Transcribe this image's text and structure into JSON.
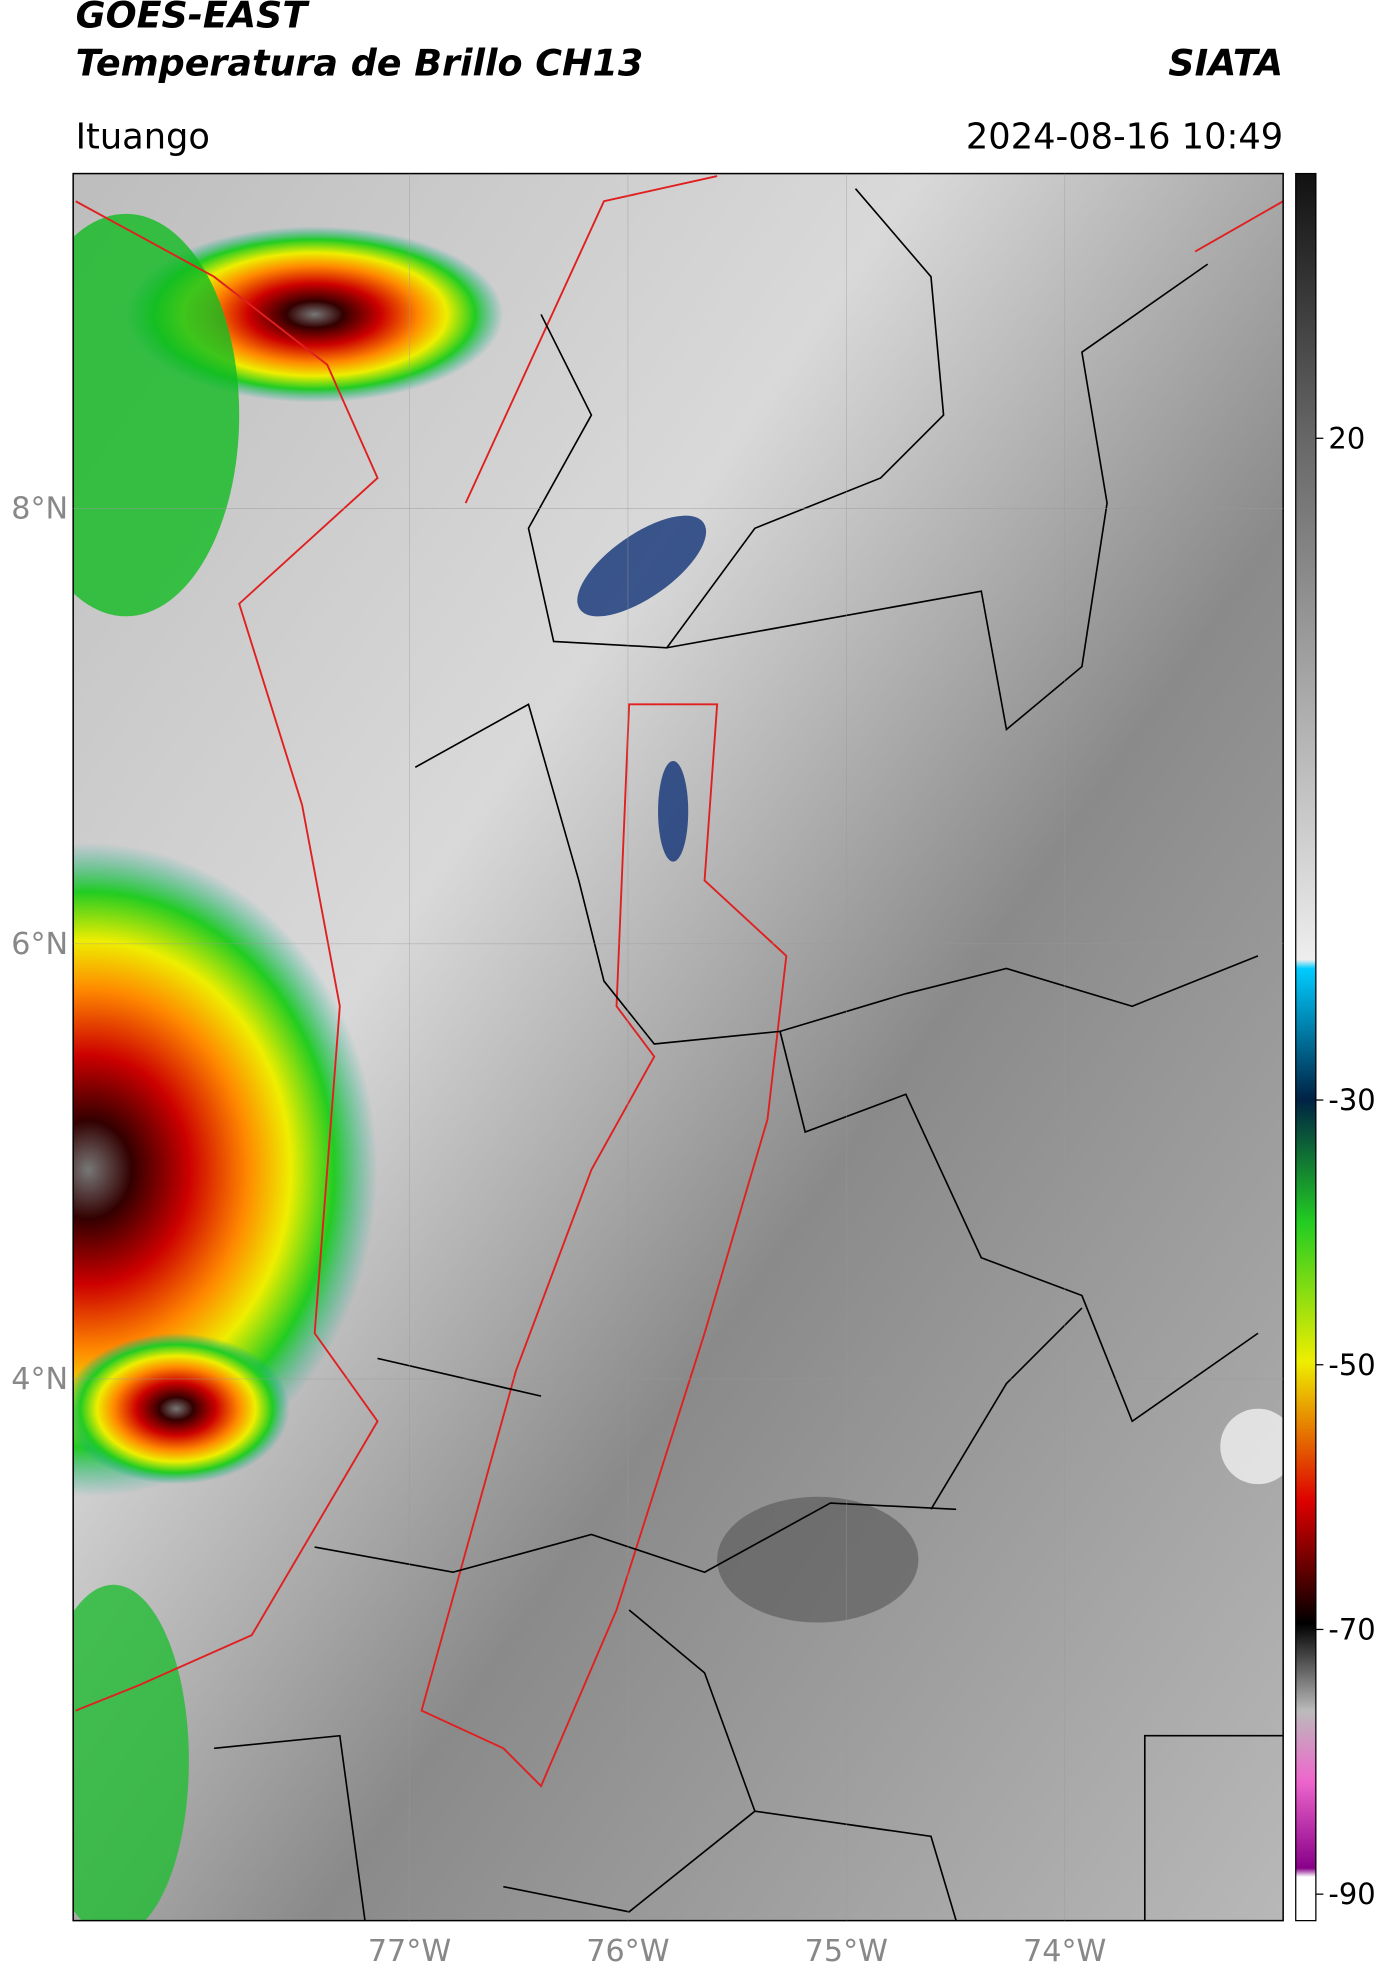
{
  "header": {
    "title_line1": "GOES-EAST",
    "title_line2": "Temperatura de Brillo CH13",
    "source": "SIATA",
    "location": "Ituango",
    "datetime": "2024-08-16 10:49"
  },
  "map": {
    "lonlim": [
      -78.54,
      -73.0
    ],
    "latlim": [
      1.51,
      9.54
    ],
    "lat_ticks": [
      {
        "value": 8,
        "label": "8°N"
      },
      {
        "value": 6,
        "label": "6°N"
      },
      {
        "value": 4,
        "label": "4°N"
      }
    ],
    "lon_ticks": [
      {
        "value": -77,
        "label": "77°W"
      },
      {
        "value": -76,
        "label": "76°W"
      },
      {
        "value": -75,
        "label": "75°W"
      },
      {
        "value": -74,
        "label": "74°W"
      }
    ]
  },
  "colorbar": {
    "lim": [
      40,
      -92
    ],
    "ticks": [
      20,
      -30,
      -50,
      -70,
      -90
    ]
  }
}
